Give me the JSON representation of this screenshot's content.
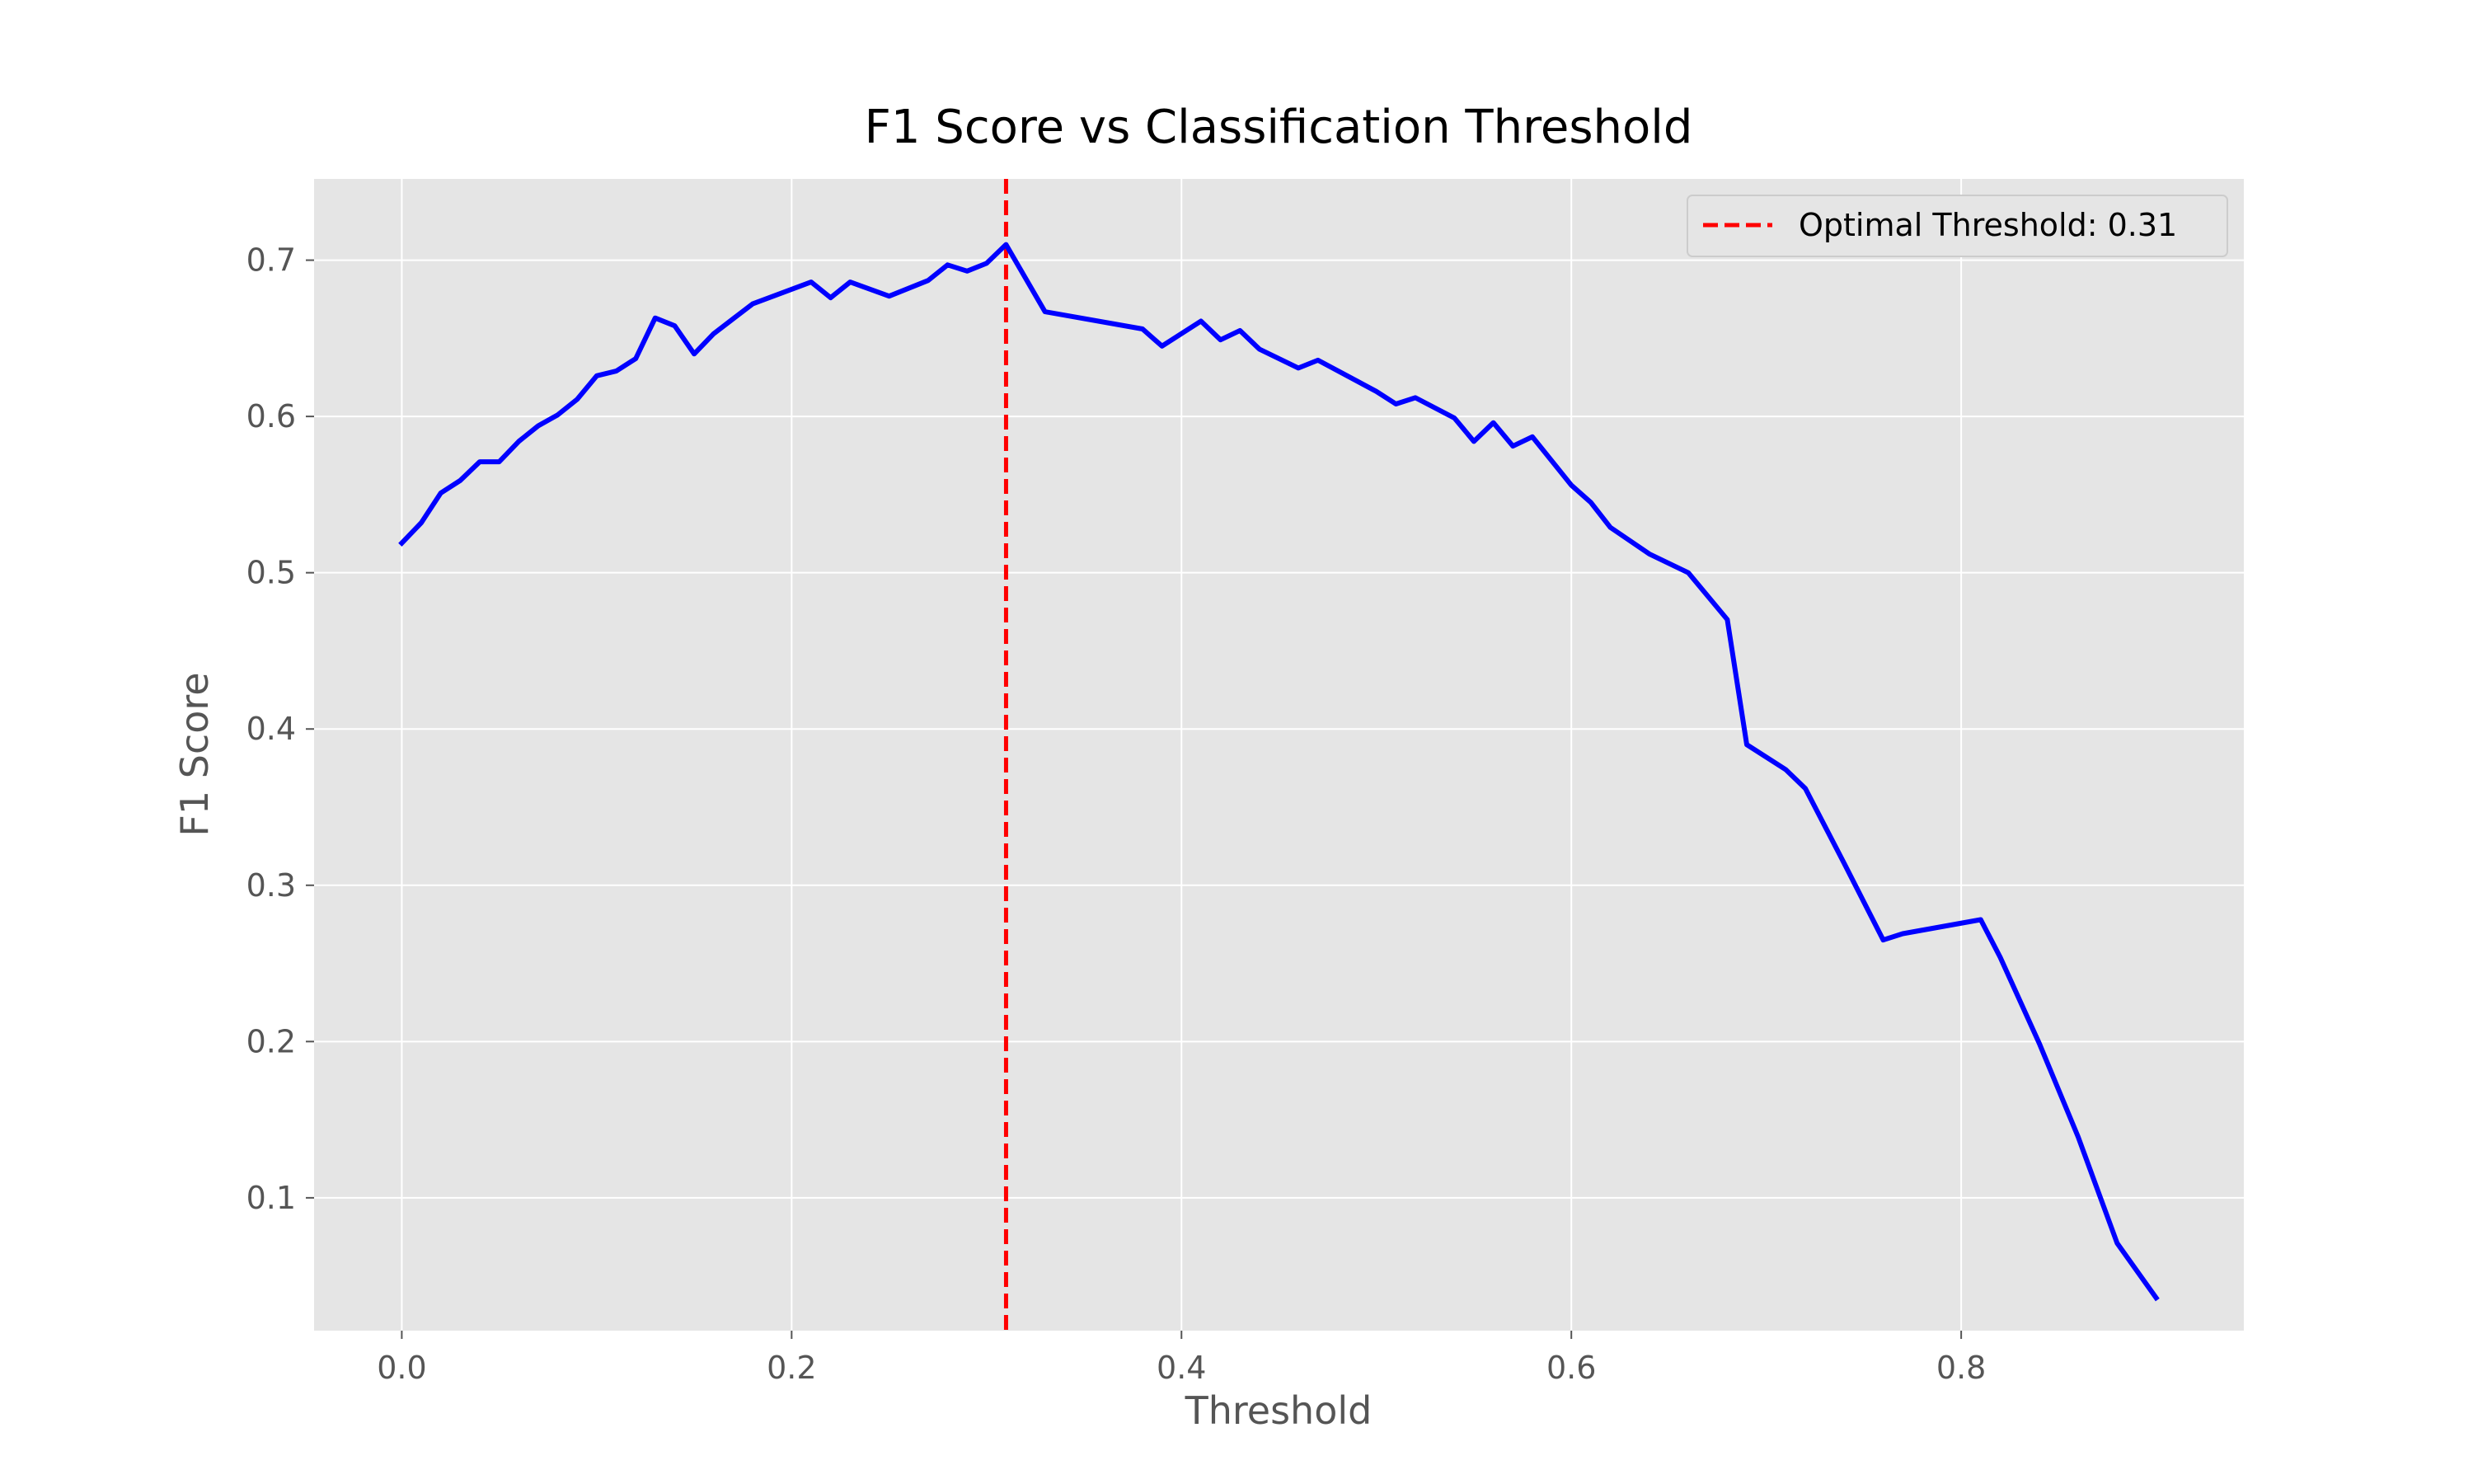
{
  "chart_data": {
    "type": "line",
    "title": "F1 Score vs Classification Threshold",
    "xlabel": "Threshold",
    "ylabel": "F1 Score",
    "xlim": [
      -0.045,
      0.945
    ],
    "ylim": [
      0.015,
      0.752
    ],
    "xticks": [
      0.0,
      0.2,
      0.4,
      0.6,
      0.8
    ],
    "xtick_labels": [
      "0.0",
      "0.2",
      "0.4",
      "0.6",
      "0.8"
    ],
    "yticks": [
      0.1,
      0.2,
      0.3,
      0.4,
      0.5,
      0.6,
      0.7
    ],
    "ytick_labels": [
      "0.1",
      "0.2",
      "0.3",
      "0.4",
      "0.5",
      "0.6",
      "0.7"
    ],
    "grid": true,
    "legend_position": "top-right",
    "series": [
      {
        "type": "line",
        "color": "#0000ff",
        "x": [
          0.0,
          0.01,
          0.02,
          0.03,
          0.04,
          0.05,
          0.06,
          0.07,
          0.08,
          0.09,
          0.1,
          0.11,
          0.12,
          0.13,
          0.14,
          0.15,
          0.16,
          0.18,
          0.21,
          0.22,
          0.23,
          0.25,
          0.27,
          0.28,
          0.29,
          0.3,
          0.31,
          0.33,
          0.38,
          0.39,
          0.41,
          0.42,
          0.43,
          0.44,
          0.46,
          0.47,
          0.5,
          0.51,
          0.52,
          0.54,
          0.55,
          0.56,
          0.57,
          0.58,
          0.6,
          0.61,
          0.62,
          0.64,
          0.66,
          0.68,
          0.69,
          0.71,
          0.72,
          0.74,
          0.76,
          0.77,
          0.81,
          0.82,
          0.84,
          0.86,
          0.88,
          0.9
        ],
        "y": [
          0.519,
          0.532,
          0.551,
          0.559,
          0.571,
          0.571,
          0.584,
          0.594,
          0.601,
          0.611,
          0.626,
          0.629,
          0.637,
          0.663,
          0.658,
          0.64,
          0.653,
          0.672,
          0.686,
          0.676,
          0.686,
          0.677,
          0.687,
          0.697,
          0.693,
          0.698,
          0.71,
          0.667,
          0.656,
          0.645,
          0.661,
          0.649,
          0.655,
          0.643,
          0.631,
          0.636,
          0.616,
          0.608,
          0.612,
          0.599,
          0.584,
          0.596,
          0.581,
          0.587,
          0.556,
          0.545,
          0.529,
          0.512,
          0.5,
          0.47,
          0.39,
          0.374,
          0.362,
          0.314,
          0.265,
          0.269,
          0.278,
          0.254,
          0.199,
          0.139,
          0.071,
          0.036
        ]
      }
    ],
    "vlines": [
      {
        "x": 0.31,
        "color": "#ff0000",
        "style": "dashed",
        "label": "Optimal Threshold: 0.31"
      }
    ],
    "background_color": "#e5e5e5",
    "grid_color": "#ffffff"
  }
}
